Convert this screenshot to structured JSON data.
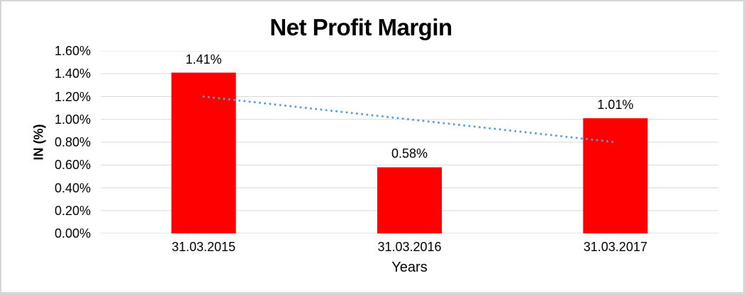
{
  "chart_data": {
    "type": "bar",
    "title": "Net Profit Margin",
    "xlabel": "Years",
    "ylabel": "IN (%)",
    "categories": [
      "31.03.2015",
      "31.03.2016",
      "31.03.2017"
    ],
    "values": [
      1.41,
      0.58,
      1.01
    ],
    "value_labels": [
      "1.41%",
      "0.58%",
      "1.01%"
    ],
    "ylim": [
      0,
      1.6
    ],
    "ytick_step": 0.2,
    "ytick_labels": [
      "0.00%",
      "0.20%",
      "0.40%",
      "0.60%",
      "0.80%",
      "1.00%",
      "1.20%",
      "1.40%",
      "1.60%"
    ],
    "grid": "horizontal",
    "legend": "none",
    "bar_color": "#FF0000",
    "trendline": {
      "type": "linear",
      "style": "dotted",
      "color": "#5B9BD5",
      "start_value": 1.2,
      "end_value": 0.8
    }
  },
  "colors": {
    "gridline": "#D9D9D9",
    "axis_line": "#CFCFCF",
    "text": "#000000",
    "frame_border": "#D6D6D6",
    "background": "#FFFFFF"
  }
}
